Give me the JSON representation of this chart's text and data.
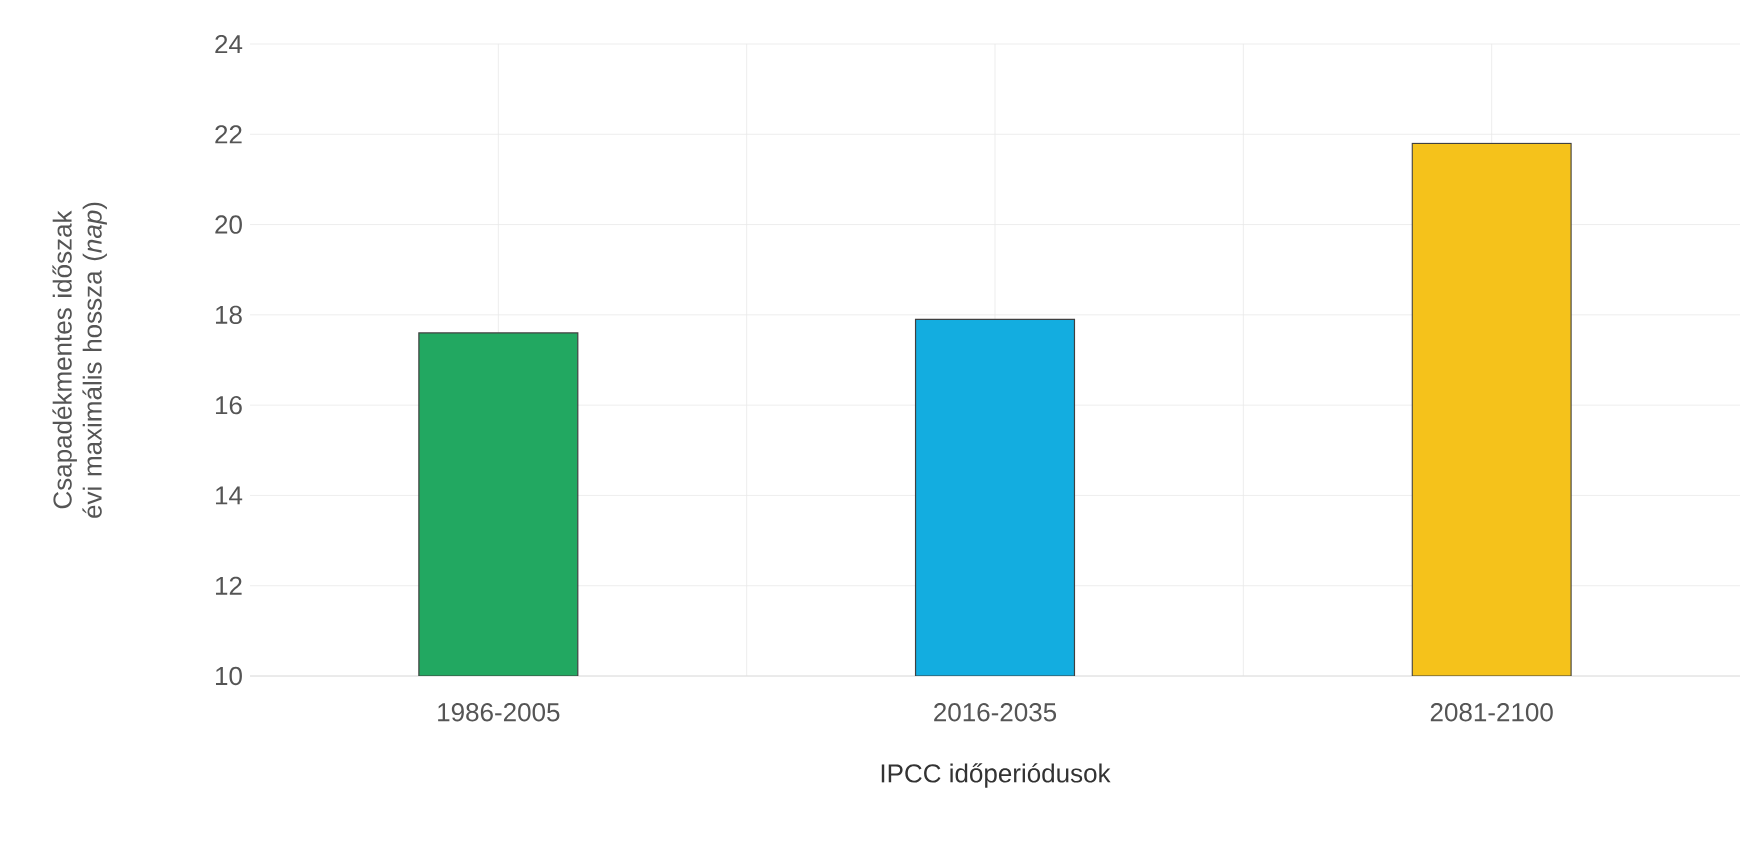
{
  "chart_data": {
    "type": "bar",
    "xlabel": "IPCC időperiódusok",
    "ylabel": "Csapadékmentes időszak évi maximális hossza (*nap*)",
    "categories": [
      "1986-2005",
      "2016-2035",
      "2081-2100"
    ],
    "values": [
      17.6,
      17.9,
      21.8
    ],
    "colors": [
      "#22a861",
      "#13ade0",
      "#f5c21b"
    ],
    "ylim": [
      10,
      24
    ],
    "yticks": [
      10,
      12,
      14,
      16,
      18,
      20,
      22,
      24
    ],
    "grid": true
  }
}
